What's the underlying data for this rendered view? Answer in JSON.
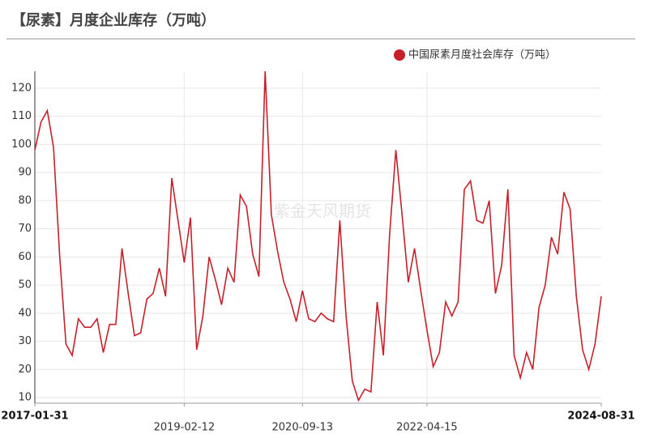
{
  "chart_data": {
    "type": "line",
    "title": "【尿素】月度企业库存（万吨）",
    "watermark": "紫金天风期货",
    "categories": [
      "2017-01-31",
      null,
      null,
      null,
      null,
      null,
      null,
      null,
      null,
      null,
      null,
      null,
      null,
      null,
      null,
      null,
      null,
      null,
      null,
      null,
      null,
      null,
      null,
      null,
      "2019-02-12",
      null,
      null,
      null,
      null,
      null,
      null,
      null,
      null,
      null,
      null,
      null,
      null,
      null,
      null,
      null,
      null,
      null,
      null,
      "2020-09-13",
      null,
      null,
      null,
      null,
      null,
      null,
      null,
      null,
      null,
      null,
      null,
      null,
      null,
      null,
      null,
      null,
      null,
      null,
      null,
      "2022-04-15",
      null,
      null,
      null,
      null,
      null,
      null,
      null,
      null,
      null,
      null,
      null,
      null,
      null,
      null,
      null,
      null,
      null,
      null,
      null,
      null,
      null,
      null,
      null,
      null,
      null,
      null,
      null,
      "2024-08-31"
    ],
    "series": [
      {
        "name": "中国尿素月度社会库存（万吨）",
        "color": "#c8202a",
        "values": [
          98,
          108,
          112,
          99,
          60,
          29,
          25,
          38,
          35,
          35,
          38,
          26,
          36,
          36,
          63,
          47,
          32,
          33,
          45,
          47,
          56,
          46,
          88,
          73,
          58,
          74,
          27,
          39,
          60,
          52,
          43,
          56,
          51,
          82,
          78,
          61,
          53,
          126,
          75,
          62,
          51,
          45,
          37,
          48,
          38,
          37,
          40,
          38,
          37,
          73,
          39,
          16,
          9,
          13,
          12,
          44,
          25,
          68,
          98,
          75,
          51,
          63,
          48,
          34,
          21,
          26,
          44,
          39,
          44,
          84,
          87,
          73,
          72,
          80,
          47,
          57,
          84,
          25,
          17,
          26,
          20,
          42,
          50,
          67,
          61,
          83,
          77,
          46,
          27,
          20,
          29,
          46
        ]
      }
    ],
    "ylim": [
      8,
      126
    ],
    "yticks": [
      10,
      20,
      30,
      40,
      50,
      60,
      70,
      80,
      90,
      100,
      110,
      120
    ],
    "grid": true
  }
}
